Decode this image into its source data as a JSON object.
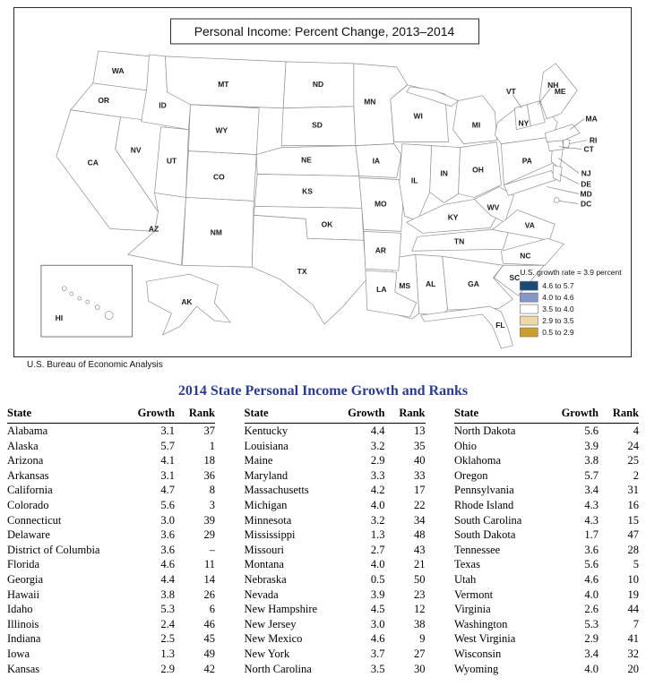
{
  "map": {
    "title": "Personal Income: Percent Change, 2013–2014",
    "source": "U.S. Bureau of Economic Analysis",
    "legend": {
      "note": "U.S. growth rate = 3.9 percent",
      "items": [
        {
          "label": "4.6 to 5.7",
          "color": "#1b4a78"
        },
        {
          "label": "4.0 to 4.6",
          "color": "#8497c6"
        },
        {
          "label": "3.5 to 4.0",
          "color": "#ffffff"
        },
        {
          "label": "2.9 to 3.5",
          "color": "#eed9a6"
        },
        {
          "label": "0.5 to 2.9",
          "color": "#cf9f2e"
        }
      ]
    }
  },
  "table": {
    "title": "2014 State Personal Income Growth and Ranks",
    "title_color": "#2b3c8f",
    "headers": [
      "State",
      "Growth",
      "Rank"
    ]
  },
  "chart_data": {
    "type": "table",
    "title": "2014 State Personal Income Growth and Ranks",
    "map_title": "Personal Income: Percent Change, 2013–2014",
    "us_growth_rate_percent": 3.9,
    "columns": [
      "State",
      "Growth",
      "Rank"
    ],
    "rows": [
      [
        "Alabama",
        3.1,
        37
      ],
      [
        "Alaska",
        5.7,
        1
      ],
      [
        "Arizona",
        4.1,
        18
      ],
      [
        "Arkansas",
        3.1,
        36
      ],
      [
        "California",
        4.7,
        8
      ],
      [
        "Colorado",
        5.6,
        3
      ],
      [
        "Connecticut",
        3.0,
        39
      ],
      [
        "Delaware",
        3.6,
        29
      ],
      [
        "District of Columbia",
        3.6,
        "–"
      ],
      [
        "Florida",
        4.6,
        11
      ],
      [
        "Georgia",
        4.4,
        14
      ],
      [
        "Hawaii",
        3.8,
        26
      ],
      [
        "Idaho",
        5.3,
        6
      ],
      [
        "Illinois",
        2.4,
        46
      ],
      [
        "Indiana",
        2.5,
        45
      ],
      [
        "Iowa",
        1.3,
        49
      ],
      [
        "Kansas",
        2.9,
        42
      ],
      [
        "Kentucky",
        4.4,
        13
      ],
      [
        "Louisiana",
        3.2,
        35
      ],
      [
        "Maine",
        2.9,
        40
      ],
      [
        "Maryland",
        3.3,
        33
      ],
      [
        "Massachusetts",
        4.2,
        17
      ],
      [
        "Michigan",
        4.0,
        22
      ],
      [
        "Minnesota",
        3.2,
        34
      ],
      [
        "Mississippi",
        1.3,
        48
      ],
      [
        "Missouri",
        2.7,
        43
      ],
      [
        "Montana",
        4.0,
        21
      ],
      [
        "Nebraska",
        0.5,
        50
      ],
      [
        "Nevada",
        3.9,
        23
      ],
      [
        "New Hampshire",
        4.5,
        12
      ],
      [
        "New Jersey",
        3.0,
        38
      ],
      [
        "New Mexico",
        4.6,
        9
      ],
      [
        "New York",
        3.7,
        27
      ],
      [
        "North Carolina",
        3.5,
        30
      ],
      [
        "North Dakota",
        5.6,
        4
      ],
      [
        "Ohio",
        3.9,
        24
      ],
      [
        "Oklahoma",
        3.8,
        25
      ],
      [
        "Oregon",
        5.7,
        2
      ],
      [
        "Pennsylvania",
        3.4,
        31
      ],
      [
        "Rhode Island",
        4.3,
        16
      ],
      [
        "South Carolina",
        4.3,
        15
      ],
      [
        "South Dakota",
        1.7,
        47
      ],
      [
        "Tennessee",
        3.6,
        28
      ],
      [
        "Texas",
        5.6,
        5
      ],
      [
        "Utah",
        4.6,
        10
      ],
      [
        "Vermont",
        4.0,
        19
      ],
      [
        "Virginia",
        2.6,
        44
      ],
      [
        "Washington",
        5.3,
        7
      ],
      [
        "West Virginia",
        2.9,
        41
      ],
      [
        "Wisconsin",
        3.4,
        32
      ],
      [
        "Wyoming",
        4.0,
        20
      ]
    ],
    "bin_labels": [
      "4.6 to 5.7",
      "4.0 to 4.6",
      "3.5 to 4.0",
      "2.9 to 3.5",
      "0.5 to 2.9"
    ],
    "state_bins": {
      "WA": 0,
      "OR": 0,
      "CA": 0,
      "ID": 0,
      "UT": 0,
      "CO": 0,
      "NM": 0,
      "TX": 0,
      "ND": 0,
      "AK": 0,
      "AZ": 1,
      "WY": 1,
      "MI": 1,
      "VT": 1,
      "NH": 1,
      "MA": 1,
      "RI": 1,
      "KY": 1,
      "SC": 1,
      "GA": 1,
      "FL": 1,
      "NV": 2,
      "MT": 2,
      "OK": 2,
      "OH": 2,
      "NY": 2,
      "TN": 2,
      "NC": 2,
      "DE": 2,
      "DC": 2,
      "HI": 2,
      "MN": 3,
      "WI": 3,
      "PA": 3,
      "NJ": 3,
      "MD": 3,
      "CT": 3,
      "ME": 3,
      "AL": 3,
      "AR": 3,
      "LA": 3,
      "WV": 3,
      "SD": 4,
      "NE": 4,
      "KS": 4,
      "IA": 4,
      "MO": 4,
      "IL": 4,
      "IN": 4,
      "MS": 4,
      "VA": 4
    }
  }
}
